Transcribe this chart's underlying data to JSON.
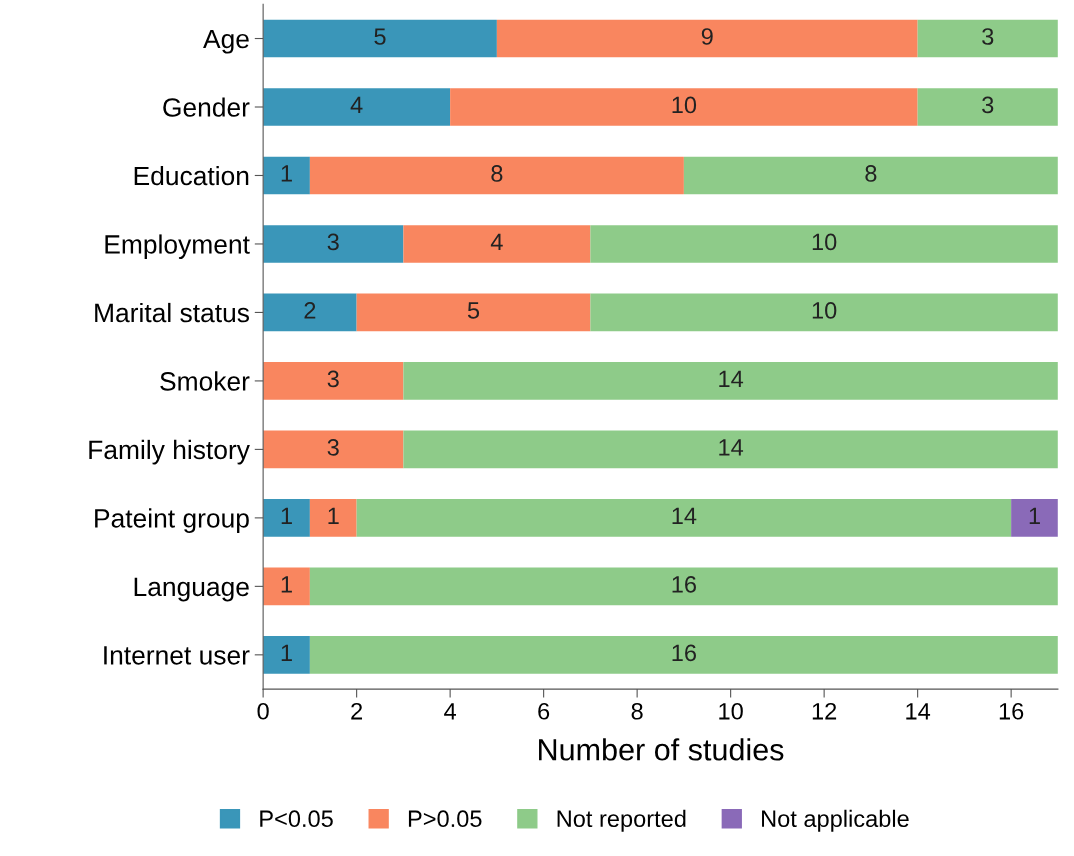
{
  "chart_data": {
    "type": "bar",
    "orientation": "horizontal",
    "stacked": true,
    "xlabel": "Number of studies",
    "categories": [
      "Age",
      "Gender",
      "Education",
      "Employment",
      "Marital status",
      "Smoker",
      "Family history",
      "Pateint group",
      "Language",
      "Internet user"
    ],
    "series": [
      {
        "name": "P<0.05",
        "color": "#3a96b9",
        "values": [
          5,
          4,
          1,
          3,
          2,
          null,
          null,
          1,
          null,
          1
        ],
        "value_labels": [
          "5",
          "4",
          "1",
          "3",
          "2",
          null,
          null,
          "1",
          null,
          "1"
        ]
      },
      {
        "name": "P>0.05",
        "color": "#f9865f",
        "values": [
          9,
          10,
          8,
          4,
          5,
          3,
          3,
          1,
          1,
          null
        ],
        "value_labels": [
          "9",
          "10",
          "8",
          "4",
          "5",
          "3",
          "3",
          "1",
          "1",
          null
        ]
      },
      {
        "name": "Not reported",
        "color": "#8ecb89",
        "values": [
          3,
          3,
          8,
          10,
          10,
          14,
          14,
          14,
          16,
          16
        ],
        "value_labels": [
          "3",
          "3",
          "8",
          "10",
          "10",
          "14",
          "14",
          "14",
          "16",
          "16"
        ]
      },
      {
        "name": "Not applicable",
        "color": "#8a6ab8",
        "values": [
          null,
          null,
          null,
          null,
          null,
          null,
          null,
          1,
          null,
          null
        ],
        "value_labels": [
          null,
          null,
          null,
          null,
          null,
          null,
          null,
          "1",
          null,
          null
        ]
      }
    ],
    "xlim": [
      0,
      17
    ],
    "xticks": [
      0,
      2,
      4,
      6,
      8,
      10,
      12,
      14,
      16
    ],
    "grid": false,
    "legend": "bottom"
  }
}
